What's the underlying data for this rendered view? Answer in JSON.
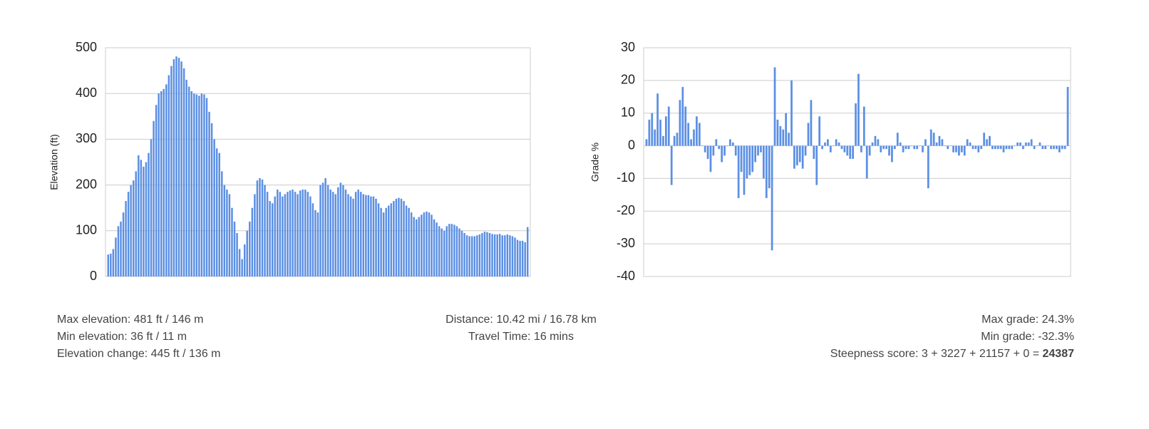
{
  "chart_data": [
    {
      "type": "bar",
      "y_label": "Elevation (ft)",
      "color": "#5b8fe3",
      "grid": true,
      "ylim": [
        0,
        500
      ],
      "yticks": [
        0,
        100,
        200,
        300,
        400,
        500
      ],
      "values": [
        48,
        50,
        60,
        85,
        110,
        120,
        140,
        165,
        185,
        200,
        210,
        230,
        265,
        255,
        240,
        250,
        270,
        300,
        340,
        375,
        400,
        405,
        410,
        420,
        440,
        460,
        475,
        481,
        478,
        470,
        455,
        430,
        415,
        405,
        400,
        398,
        395,
        400,
        398,
        390,
        360,
        335,
        300,
        280,
        270,
        230,
        200,
        190,
        180,
        150,
        120,
        95,
        60,
        38,
        70,
        100,
        120,
        150,
        180,
        210,
        215,
        212,
        200,
        185,
        165,
        160,
        175,
        190,
        185,
        175,
        180,
        185,
        188,
        190,
        185,
        180,
        188,
        190,
        190,
        185,
        175,
        160,
        145,
        140,
        200,
        205,
        215,
        200,
        190,
        185,
        180,
        195,
        205,
        200,
        190,
        180,
        175,
        170,
        185,
        190,
        185,
        180,
        178,
        178,
        175,
        175,
        170,
        160,
        150,
        140,
        150,
        155,
        160,
        165,
        170,
        172,
        170,
        165,
        155,
        150,
        140,
        130,
        125,
        130,
        135,
        140,
        142,
        140,
        135,
        125,
        118,
        110,
        105,
        100,
        110,
        115,
        115,
        113,
        110,
        105,
        100,
        95,
        90,
        88,
        88,
        88,
        90,
        92,
        95,
        98,
        97,
        95,
        93,
        92,
        92,
        93,
        90,
        90,
        92,
        90,
        88,
        85,
        80,
        78,
        78,
        75,
        108
      ]
    },
    {
      "type": "bar",
      "y_label": "Grade %",
      "color": "#5b8fe3",
      "grid": true,
      "ylim": [
        -40,
        30
      ],
      "yticks": [
        -40,
        -30,
        -20,
        -10,
        0,
        10,
        20,
        30
      ],
      "values": [
        2,
        8,
        10,
        5,
        16,
        8,
        3,
        9,
        12,
        -12,
        3,
        4,
        14,
        18,
        12,
        7,
        2,
        5,
        9,
        7,
        0,
        -2,
        -4,
        -8,
        -3,
        2,
        -1,
        -5,
        -3,
        0,
        2,
        1,
        -3,
        -16,
        -8,
        -15,
        -10,
        -9,
        -8,
        -5,
        -3,
        -2,
        -10,
        -16,
        -13,
        -32,
        24,
        8,
        6,
        5,
        10,
        4,
        20,
        -7,
        -6,
        -5,
        -7,
        -3,
        7,
        14,
        -4,
        -12,
        9,
        -1,
        1,
        2,
        -2,
        0,
        2,
        1,
        -1,
        -2,
        -3,
        -4,
        -4,
        13,
        22,
        -2,
        12,
        -10,
        -3,
        1,
        3,
        2,
        -2,
        -1,
        -1,
        -3,
        -5,
        -1,
        4,
        1,
        -2,
        -1,
        -1,
        0,
        -1,
        -1,
        0,
        -2,
        2,
        -13,
        5,
        4,
        1,
        3,
        2,
        0,
        -1,
        0,
        -2,
        -2,
        -3,
        -2,
        -3,
        2,
        1,
        -1,
        -1,
        -2,
        -1,
        4,
        2,
        3,
        -1,
        -1,
        -1,
        -1,
        -2,
        -1,
        -1,
        -1,
        0,
        1,
        1,
        -1,
        1,
        1,
        2,
        -1,
        0,
        1,
        -1,
        -1,
        0,
        -1,
        -1,
        -1,
        -2,
        -1,
        -1,
        18
      ]
    }
  ],
  "stats": {
    "left": [
      "Max elevation: 481 ft / 146 m",
      "Min elevation: 36 ft / 11 m",
      "Elevation change: 445 ft / 136 m"
    ],
    "center": [
      "Distance: 10.42 mi / 16.78 km",
      "Travel Time: 16 mins"
    ],
    "right": [
      "Max grade: 24.3%",
      "Min grade: -32.3%"
    ],
    "steepness_label": "Steepness score: 3 + 3227 + 21157 + 0 = ",
    "steepness_total": "24387"
  }
}
